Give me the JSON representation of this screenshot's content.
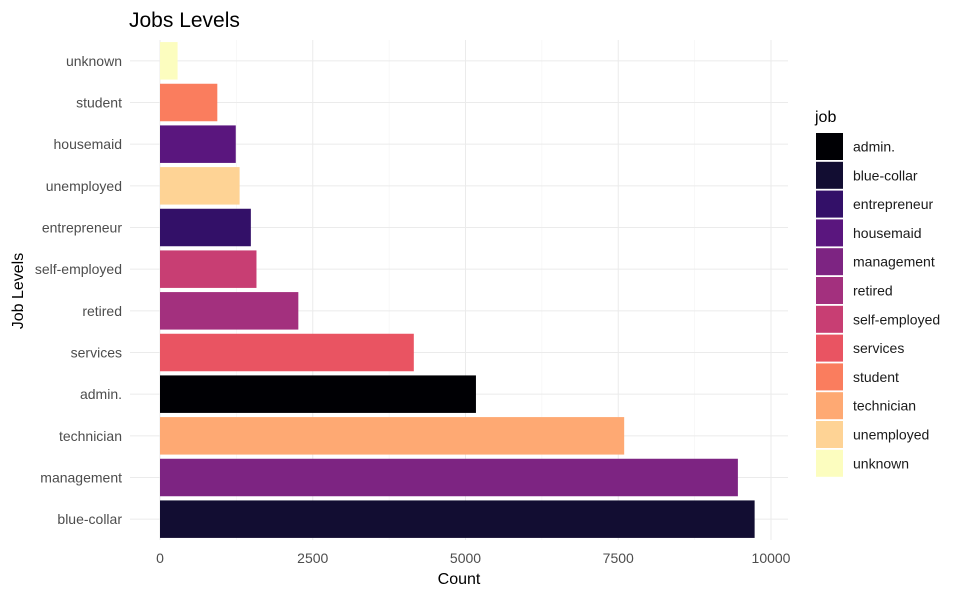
{
  "chart_data": {
    "type": "bar",
    "orientation": "horizontal",
    "title": "Jobs Levels",
    "xlabel": "Count",
    "ylabel": "Job Levels",
    "xlim": [
      0,
      10000
    ],
    "xticks": [
      0,
      2500,
      5000,
      7500,
      10000
    ],
    "xtick_labels": [
      "0",
      "2500",
      "5000",
      "7500",
      "10000"
    ],
    "grid": true,
    "legend": {
      "title": "job",
      "position": "right"
    },
    "categories": [
      "unknown",
      "student",
      "housemaid",
      "unemployed",
      "entrepreneur",
      "self-employed",
      "retired",
      "services",
      "admin.",
      "technician",
      "management",
      "blue-collar"
    ],
    "values": [
      288,
      938,
      1240,
      1303,
      1487,
      1579,
      2264,
      4154,
      5171,
      7597,
      9458,
      9732
    ],
    "colors": {
      "admin.": "#000004",
      "blue-collar": "#120d32",
      "entrepreneur": "#331068",
      "housemaid": "#5a167e",
      "management": "#7d2482",
      "retired": "#a3307e",
      "self-employed": "#c83e73",
      "services": "#e95462",
      "student": "#fa7d5e",
      "technician": "#fea973",
      "unemployed": "#fed395",
      "unknown": "#fcfdbf"
    },
    "legend_order": [
      "admin.",
      "blue-collar",
      "entrepreneur",
      "housemaid",
      "management",
      "retired",
      "self-employed",
      "services",
      "student",
      "technician",
      "unemployed",
      "unknown"
    ]
  }
}
